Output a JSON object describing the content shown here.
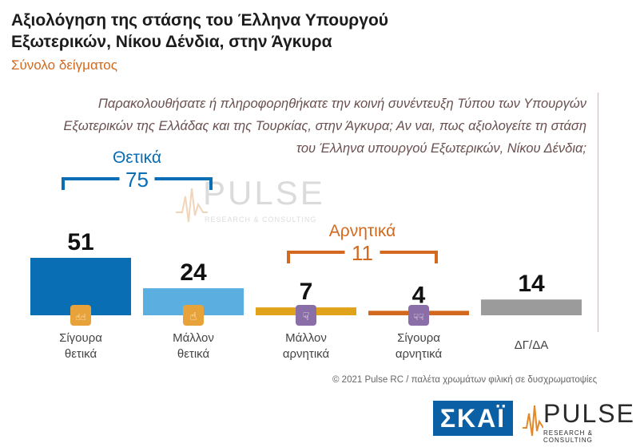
{
  "header": {
    "title": "Αξιολόγηση της στάσης του Έλληνα Υπουργού Εξωτερικών, Νίκου Δένδια, στην Άγκυρα",
    "subtitle": "Σύνολο δείγματος"
  },
  "question": "Παρακολουθήσατε ή πληροφορηθήκατε την κοινή συνέντευξη Τύπου των Υπουργών Εξωτερικών της Ελλάδας και της Τουρκίας, στην Άγκυρα; Αν ναι, πως αξιολογείτε τη στάση του Έλληνα υπουργού Εξωτερικών, Νίκου Δένδια;",
  "watermark": {
    "word": "PULSE",
    "sub": "RESEARCH & CONSULTING"
  },
  "chart_data": {
    "type": "bar",
    "categories": [
      [
        "Σίγουρα",
        "θετικά"
      ],
      [
        "Μάλλον",
        "θετικά"
      ],
      [
        "Μάλλον",
        "αρνητικά"
      ],
      [
        "Σίγουρα",
        "αρνητικά"
      ],
      [
        "ΔΓ/ΔΑ"
      ]
    ],
    "values": [
      51,
      24,
      7,
      4,
      14
    ],
    "colors": [
      "#0a6eb4",
      "#5aaee0",
      "#e0a21b",
      "#d2691e",
      "#9b9b9b"
    ],
    "icons": [
      "double-thumbs-up-icon",
      "thumbs-up-icon",
      "thumbs-down-icon",
      "double-thumbs-down-icon",
      ""
    ],
    "icon_colors": [
      "#e8a23a",
      "#e8a23a",
      "#8a6ea8",
      "#8a6ea8",
      ""
    ],
    "groups": [
      {
        "label": "Θετικά",
        "value": "75",
        "color": "#0a6eb4",
        "from": 0,
        "to": 1
      },
      {
        "label": "Αρνητικά",
        "value": "11",
        "color": "#d2691e",
        "from": 2,
        "to": 3
      }
    ],
    "ylim": [
      0,
      51
    ]
  },
  "footer": {
    "note": "© 2021 Pulse RC   /   παλέτα χρωμάτων φιλική σε δυσχρωματοψίες"
  },
  "logos": {
    "skai": "ΣΚΑΪ",
    "pulse": "PULSE",
    "pulse_sub": "RESEARCH & CONSULTING"
  }
}
